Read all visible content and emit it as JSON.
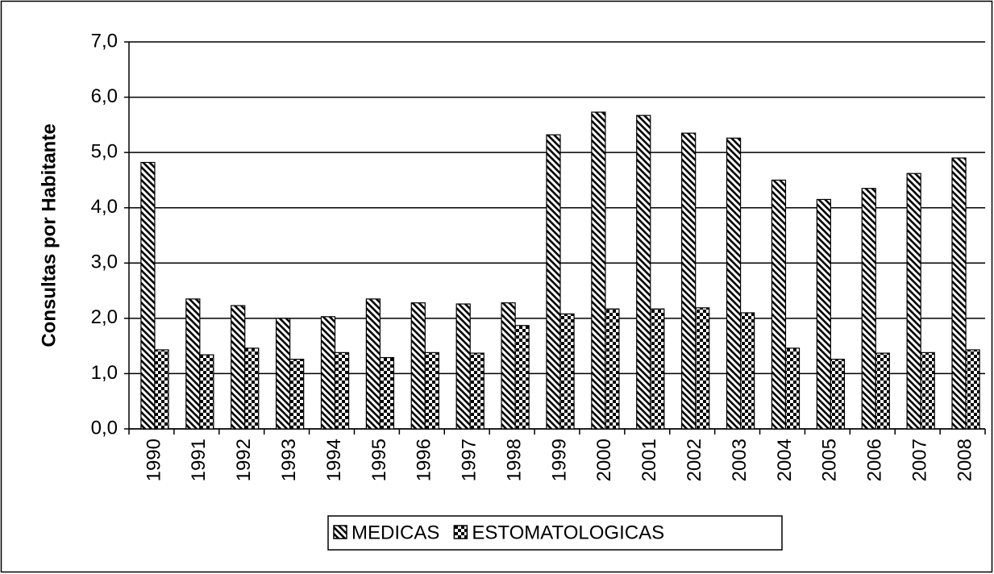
{
  "chart_data": {
    "type": "bar",
    "y_label": "Consultas por Habitante",
    "categories": [
      "1990",
      "1991",
      "1992",
      "1993",
      "1994",
      "1995",
      "1996",
      "1997",
      "1998",
      "1999",
      "2000",
      "2001",
      "2002",
      "2003",
      "2004",
      "2005",
      "2006",
      "2007",
      "2008"
    ],
    "series": [
      {
        "name": "MEDICAS",
        "color": "#000000",
        "values": [
          4.82,
          2.35,
          2.23,
          2.0,
          2.03,
          2.35,
          2.28,
          2.26,
          2.28,
          5.32,
          5.73,
          5.67,
          5.35,
          5.26,
          4.5,
          4.15,
          4.35,
          4.62,
          4.9
        ]
      },
      {
        "name": "ESTOMATOLOGICAS",
        "color": "#000000",
        "values": [
          1.43,
          1.34,
          1.46,
          1.26,
          1.38,
          1.29,
          1.38,
          1.37,
          1.87,
          2.08,
          2.17,
          2.17,
          2.19,
          2.1,
          1.46,
          1.26,
          1.37,
          1.38,
          1.43
        ]
      }
    ],
    "ylim": [
      0,
      7
    ],
    "yticks": [
      {
        "value": 0,
        "label": "0,0"
      },
      {
        "value": 1,
        "label": "1,0"
      },
      {
        "value": 2,
        "label": "2,0"
      },
      {
        "value": 3,
        "label": "3,0"
      },
      {
        "value": 4,
        "label": "4,0"
      },
      {
        "value": 5,
        "label": "5,0"
      },
      {
        "value": 6,
        "label": "6,0"
      },
      {
        "value": 7,
        "label": "7,0"
      }
    ],
    "grid": true,
    "legend": "bottom"
  }
}
